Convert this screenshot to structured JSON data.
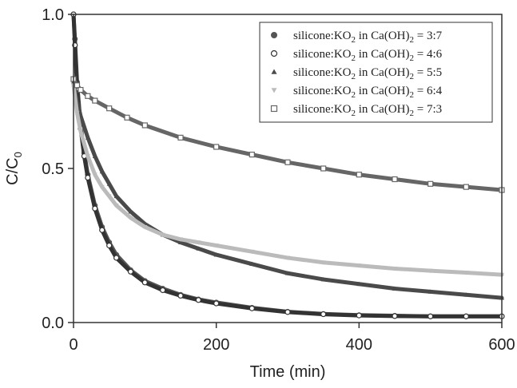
{
  "chart_data": {
    "type": "scatter",
    "title": "",
    "xlabel": "Time (min)",
    "ylabel": "C/C",
    "ylabel_subscript": "0",
    "xlim": [
      0,
      600
    ],
    "ylim": [
      0,
      1.0
    ],
    "xticks": [
      0,
      200,
      400,
      600
    ],
    "yticks": [
      0.0,
      0.5,
      1.0
    ],
    "xtick_labels": [
      "0",
      "200",
      "400",
      "600"
    ],
    "ytick_labels": [
      "0.0",
      "0.5",
      "1.0"
    ],
    "grid": false,
    "legend_position": "top-right",
    "series": [
      {
        "name": "silicone:KO2 in Ca(OH)2 = 3:7",
        "legend": {
          "a": "silicone:KO",
          "b": "2",
          "c": " in Ca(OH)",
          "d": "2",
          "e": " = 3:7"
        },
        "marker": "circle-filled",
        "color": "#555555",
        "x": [
          0,
          2,
          5,
          10,
          15,
          20,
          30,
          40,
          50,
          60,
          80,
          100,
          125,
          150,
          175,
          200,
          250,
          300,
          350,
          400,
          450,
          500,
          550,
          600
        ],
        "y": [
          1.0,
          0.92,
          0.78,
          0.64,
          0.55,
          0.48,
          0.38,
          0.31,
          0.26,
          0.22,
          0.17,
          0.135,
          0.11,
          0.09,
          0.075,
          0.065,
          0.048,
          0.035,
          0.028,
          0.024,
          0.022,
          0.02,
          0.02,
          0.02
        ]
      },
      {
        "name": "silicone:KO2 in Ca(OH)2 = 4:6",
        "legend": {
          "a": "silicone:KO",
          "b": "2",
          "c": " in Ca(OH)",
          "d": "2",
          "e": " = 4:6"
        },
        "marker": "circle-open",
        "color": "#333333",
        "x": [
          0,
          2,
          5,
          10,
          15,
          20,
          30,
          40,
          50,
          60,
          80,
          100,
          125,
          150,
          175,
          200,
          250,
          300,
          350,
          400,
          450,
          500,
          550,
          600
        ],
        "y": [
          1.0,
          0.9,
          0.76,
          0.63,
          0.54,
          0.47,
          0.37,
          0.3,
          0.25,
          0.21,
          0.165,
          0.13,
          0.105,
          0.087,
          0.073,
          0.062,
          0.046,
          0.034,
          0.027,
          0.023,
          0.021,
          0.02,
          0.02,
          0.02
        ]
      },
      {
        "name": "silicone:KO2 in Ca(OH)2 = 5:5",
        "legend": {
          "a": "silicone:KO",
          "b": "2",
          "c": " in Ca(OH)",
          "d": "2",
          "e": " = 5:5"
        },
        "marker": "triangle-filled",
        "color": "#4a4a4a",
        "x": [
          0,
          5,
          10,
          20,
          30,
          40,
          50,
          60,
          80,
          100,
          125,
          150,
          175,
          200,
          250,
          300,
          350,
          400,
          450,
          500,
          550,
          600
        ],
        "y": [
          0.78,
          0.72,
          0.67,
          0.6,
          0.54,
          0.49,
          0.45,
          0.41,
          0.36,
          0.32,
          0.285,
          0.26,
          0.24,
          0.22,
          0.19,
          0.16,
          0.14,
          0.125,
          0.11,
          0.1,
          0.09,
          0.08
        ]
      },
      {
        "name": "silicone:KO2 in Ca(OH)2 = 6:4",
        "legend": {
          "a": "silicone:KO",
          "b": "2",
          "c": " in Ca(OH)",
          "d": "2",
          "e": " = 6:4"
        },
        "marker": "triangle-down-filled",
        "color": "#bbbbbb",
        "x": [
          0,
          5,
          10,
          20,
          30,
          40,
          50,
          60,
          80,
          100,
          125,
          150,
          175,
          200,
          250,
          300,
          350,
          400,
          450,
          500,
          550,
          600
        ],
        "y": [
          0.77,
          0.68,
          0.62,
          0.54,
          0.48,
          0.44,
          0.41,
          0.38,
          0.34,
          0.31,
          0.285,
          0.27,
          0.26,
          0.25,
          0.23,
          0.21,
          0.195,
          0.185,
          0.175,
          0.168,
          0.162,
          0.155
        ]
      },
      {
        "name": "silicone:KO2 in Ca(OH)2 = 7:3",
        "legend": {
          "a": "silicone:KO",
          "b": "2",
          "c": " in Ca(OH)",
          "d": "2",
          "e": " = 7:3"
        },
        "marker": "square-open",
        "color": "#666666",
        "x": [
          0,
          5,
          10,
          20,
          30,
          50,
          75,
          100,
          150,
          200,
          250,
          300,
          350,
          400,
          450,
          500,
          550,
          600
        ],
        "y": [
          0.79,
          0.77,
          0.755,
          0.735,
          0.72,
          0.695,
          0.665,
          0.64,
          0.6,
          0.57,
          0.545,
          0.52,
          0.5,
          0.48,
          0.465,
          0.45,
          0.44,
          0.43
        ]
      }
    ]
  }
}
